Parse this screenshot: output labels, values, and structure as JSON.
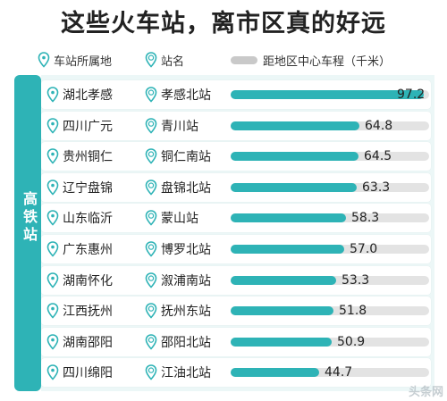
{
  "chart_data": {
    "type": "bar",
    "title": "这些火车站，离市区真的好远",
    "legend": {
      "province_label": "车站所属地",
      "station_label": "站名",
      "distance_label": "距地区中心车程（千米）"
    },
    "group_label": "高铁站",
    "xlim": [
      0,
      100
    ],
    "rows": [
      {
        "province": "湖北孝感",
        "station": "孝感北站",
        "value": 97.2,
        "value_label": "97.2"
      },
      {
        "province": "四川广元",
        "station": "青川站",
        "value": 64.8,
        "value_label": "64.8"
      },
      {
        "province": "贵州铜仁",
        "station": "铜仁南站",
        "value": 64.5,
        "value_label": "64.5"
      },
      {
        "province": "辽宁盘锦",
        "station": "盘锦北站",
        "value": 63.3,
        "value_label": "63.3"
      },
      {
        "province": "山东临沂",
        "station": "蒙山站",
        "value": 58.3,
        "value_label": "58.3"
      },
      {
        "province": "广东惠州",
        "station": "博罗北站",
        "value": 57.0,
        "value_label": "57.0"
      },
      {
        "province": "湖南怀化",
        "station": "溆浦南站",
        "value": 53.3,
        "value_label": "53.3"
      },
      {
        "province": "江西抚州",
        "station": "抚州东站",
        "value": 51.8,
        "value_label": "51.8"
      },
      {
        "province": "湖南邵阳",
        "station": "邵阳北站",
        "value": 50.9,
        "value_label": "50.9"
      },
      {
        "province": "四川绵阳",
        "station": "江油北站",
        "value": 44.7,
        "value_label": "44.7"
      }
    ]
  },
  "colors": {
    "accent": "#2eb3b6",
    "track": "#e3e3e3",
    "panel": "#ecf7f7"
  },
  "icons": {
    "province": "location-pin-icon",
    "station": "station-pin-icon"
  },
  "watermark": "头条网"
}
